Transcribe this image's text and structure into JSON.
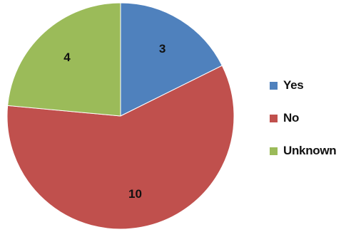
{
  "chart_data": {
    "type": "pie",
    "title": "",
    "slices": [
      {
        "label": "Yes",
        "value": 3,
        "color": "#4f81bd"
      },
      {
        "label": "No",
        "value": 10,
        "color": "#c0504d"
      },
      {
        "label": "Unknown",
        "value": 4,
        "color": "#9bbb59"
      }
    ],
    "legend": {
      "position": "right"
    }
  }
}
